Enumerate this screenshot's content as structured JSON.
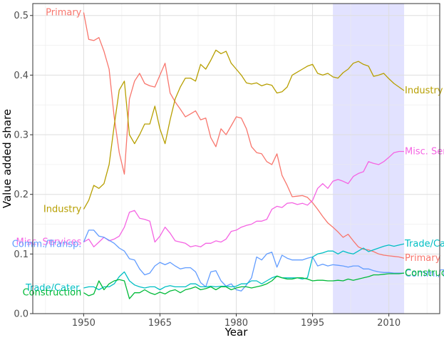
{
  "chart_data": {
    "type": "line",
    "title": "",
    "xlabel": "Year",
    "ylabel": "Value added share",
    "xlim": [
      1940,
      2020
    ],
    "ylim": [
      0,
      0.52
    ],
    "xticks": [
      1950,
      1965,
      1980,
      1995,
      2010
    ],
    "xtick_labels": [
      "1950",
      "1965",
      "1980",
      "1995",
      "2010"
    ],
    "yticks": [
      0.0,
      0.1,
      0.2,
      0.3,
      0.4,
      0.5
    ],
    "ytick_labels": [
      "0.0",
      "0.1",
      "0.2",
      "0.3",
      "0.4",
      "0.5"
    ],
    "grid": true,
    "shaded_region": {
      "x_start": 1999,
      "x_end": 2013,
      "color": "#e0e0ff"
    },
    "series": [
      {
        "name": "Primary",
        "color": "#f8766d",
        "start_label": "Primary",
        "end_label": "Primary",
        "x": [
          1950,
          1951,
          1952,
          1953,
          1954,
          1955,
          1956,
          1957,
          1958,
          1959,
          1960,
          1961,
          1962,
          1963,
          1964,
          1965,
          1966,
          1967,
          1968,
          1969,
          1970,
          1971,
          1972,
          1973,
          1974,
          1975,
          1976,
          1977,
          1978,
          1979,
          1980,
          1981,
          1982,
          1983,
          1984,
          1985,
          1986,
          1987,
          1988,
          1989,
          1990,
          1991,
          1992,
          1993,
          1994,
          1995,
          1996,
          1997,
          1998,
          1999,
          2000,
          2001,
          2002,
          2003,
          2004,
          2005,
          2006,
          2007,
          2008,
          2009,
          2010,
          2011,
          2012,
          2013
        ],
        "y": [
          0.505,
          0.46,
          0.458,
          0.463,
          0.44,
          0.41,
          0.33,
          0.27,
          0.234,
          0.36,
          0.39,
          0.403,
          0.386,
          0.382,
          0.38,
          0.4,
          0.42,
          0.37,
          0.355,
          0.343,
          0.33,
          0.335,
          0.34,
          0.325,
          0.328,
          0.295,
          0.28,
          0.31,
          0.3,
          0.315,
          0.33,
          0.328,
          0.31,
          0.28,
          0.27,
          0.268,
          0.255,
          0.25,
          0.268,
          0.232,
          0.215,
          0.196,
          0.197,
          0.198,
          0.195,
          0.186,
          0.175,
          0.163,
          0.152,
          0.145,
          0.137,
          0.128,
          0.133,
          0.122,
          0.112,
          0.108,
          0.107,
          0.104,
          0.1,
          0.098,
          0.097,
          0.096,
          0.095,
          0.093
        ]
      },
      {
        "name": "Industry",
        "color": "#b79f00",
        "start_label": "Industry",
        "end_label": "Industry",
        "x": [
          1950,
          1951,
          1952,
          1953,
          1954,
          1955,
          1956,
          1957,
          1958,
          1959,
          1960,
          1961,
          1962,
          1963,
          1964,
          1965,
          1966,
          1967,
          1968,
          1969,
          1970,
          1971,
          1972,
          1973,
          1974,
          1975,
          1976,
          1977,
          1978,
          1979,
          1980,
          1981,
          1982,
          1983,
          1984,
          1985,
          1986,
          1987,
          1988,
          1989,
          1990,
          1991,
          1992,
          1993,
          1994,
          1995,
          1996,
          1997,
          1998,
          1999,
          2000,
          2001,
          2002,
          2003,
          2004,
          2005,
          2006,
          2007,
          2008,
          2009,
          2010,
          2011,
          2012,
          2013
        ],
        "y": [
          0.175,
          0.19,
          0.215,
          0.21,
          0.218,
          0.25,
          0.315,
          0.375,
          0.39,
          0.3,
          0.285,
          0.3,
          0.318,
          0.318,
          0.348,
          0.31,
          0.285,
          0.325,
          0.36,
          0.38,
          0.395,
          0.395,
          0.39,
          0.418,
          0.41,
          0.425,
          0.442,
          0.436,
          0.44,
          0.42,
          0.41,
          0.4,
          0.387,
          0.385,
          0.387,
          0.382,
          0.385,
          0.383,
          0.37,
          0.372,
          0.38,
          0.4,
          0.405,
          0.41,
          0.415,
          0.418,
          0.403,
          0.4,
          0.403,
          0.397,
          0.395,
          0.404,
          0.41,
          0.42,
          0.423,
          0.418,
          0.415,
          0.398,
          0.4,
          0.403,
          0.394,
          0.386,
          0.38,
          0.374
        ]
      },
      {
        "name": "Misc. Services",
        "color": "#f564e3",
        "start_label": "Misc. Services",
        "end_label": "Misc. Services",
        "x": [
          1950,
          1951,
          1952,
          1953,
          1954,
          1955,
          1956,
          1957,
          1958,
          1959,
          1960,
          1961,
          1962,
          1963,
          1964,
          1965,
          1966,
          1967,
          1968,
          1969,
          1970,
          1971,
          1972,
          1973,
          1974,
          1975,
          1976,
          1977,
          1978,
          1979,
          1980,
          1981,
          1982,
          1983,
          1984,
          1985,
          1986,
          1987,
          1988,
          1989,
          1990,
          1991,
          1992,
          1993,
          1994,
          1995,
          1996,
          1997,
          1998,
          1999,
          2000,
          2001,
          2002,
          2003,
          2004,
          2005,
          2006,
          2007,
          2008,
          2009,
          2010,
          2011,
          2012,
          2013
        ],
        "y": [
          0.12,
          0.125,
          0.112,
          0.12,
          0.128,
          0.122,
          0.125,
          0.13,
          0.145,
          0.17,
          0.173,
          0.16,
          0.158,
          0.155,
          0.12,
          0.13,
          0.145,
          0.135,
          0.122,
          0.12,
          0.118,
          0.112,
          0.114,
          0.112,
          0.118,
          0.118,
          0.122,
          0.12,
          0.125,
          0.138,
          0.14,
          0.145,
          0.148,
          0.15,
          0.155,
          0.155,
          0.158,
          0.175,
          0.18,
          0.178,
          0.185,
          0.186,
          0.183,
          0.185,
          0.182,
          0.19,
          0.21,
          0.218,
          0.21,
          0.222,
          0.225,
          0.222,
          0.218,
          0.23,
          0.235,
          0.238,
          0.255,
          0.252,
          0.25,
          0.255,
          0.262,
          0.27,
          0.272,
          0.272
        ]
      },
      {
        "name": "Comm./Transp.",
        "color": "#619cff",
        "start_label": "Comm./Transp.",
        "end_label": "Comm./Transp.",
        "x": [
          1950,
          1951,
          1952,
          1953,
          1954,
          1955,
          1956,
          1957,
          1958,
          1959,
          1960,
          1961,
          1962,
          1963,
          1964,
          1965,
          1966,
          1967,
          1968,
          1969,
          1970,
          1971,
          1972,
          1973,
          1974,
          1975,
          1976,
          1977,
          1978,
          1979,
          1980,
          1981,
          1982,
          1983,
          1984,
          1985,
          1986,
          1987,
          1988,
          1989,
          1990,
          1991,
          1992,
          1993,
          1994,
          1995,
          1996,
          1997,
          1998,
          1999,
          2000,
          2001,
          2002,
          2003,
          2004,
          2005,
          2006,
          2007,
          2008,
          2009,
          2010,
          2011,
          2012,
          2013
        ],
        "y": [
          0.12,
          0.14,
          0.14,
          0.13,
          0.128,
          0.123,
          0.118,
          0.11,
          0.105,
          0.092,
          0.09,
          0.075,
          0.065,
          0.068,
          0.08,
          0.086,
          0.082,
          0.086,
          0.08,
          0.075,
          0.077,
          0.077,
          0.07,
          0.052,
          0.045,
          0.07,
          0.072,
          0.055,
          0.046,
          0.05,
          0.04,
          0.038,
          0.048,
          0.06,
          0.095,
          0.09,
          0.1,
          0.103,
          0.078,
          0.098,
          0.093,
          0.09,
          0.09,
          0.09,
          0.093,
          0.095,
          0.08,
          0.083,
          0.08,
          0.082,
          0.081,
          0.08,
          0.078,
          0.08,
          0.08,
          0.075,
          0.075,
          0.072,
          0.07,
          0.069,
          0.069,
          0.068,
          0.068,
          0.068
        ]
      },
      {
        "name": "Trade/Cater.",
        "color": "#00bfc4",
        "start_label": "Trade/Cater.",
        "end_label": "Trade/Cater.",
        "x": [
          1950,
          1951,
          1952,
          1953,
          1954,
          1955,
          1956,
          1957,
          1958,
          1959,
          1960,
          1961,
          1962,
          1963,
          1964,
          1965,
          1966,
          1967,
          1968,
          1969,
          1970,
          1971,
          1972,
          1973,
          1974,
          1975,
          1976,
          1977,
          1978,
          1979,
          1980,
          1981,
          1982,
          1983,
          1984,
          1985,
          1986,
          1987,
          1988,
          1989,
          1990,
          1991,
          1992,
          1993,
          1994,
          1995,
          1996,
          1997,
          1998,
          1999,
          2000,
          2001,
          2002,
          2003,
          2004,
          2005,
          2006,
          2007,
          2008,
          2009,
          2010,
          2011,
          2012,
          2013
        ],
        "y": [
          0.043,
          0.045,
          0.045,
          0.04,
          0.045,
          0.045,
          0.05,
          0.062,
          0.07,
          0.055,
          0.048,
          0.045,
          0.043,
          0.045,
          0.045,
          0.04,
          0.045,
          0.047,
          0.045,
          0.045,
          0.045,
          0.05,
          0.05,
          0.045,
          0.045,
          0.046,
          0.045,
          0.046,
          0.046,
          0.045,
          0.046,
          0.05,
          0.05,
          0.055,
          0.055,
          0.05,
          0.055,
          0.06,
          0.063,
          0.06,
          0.06,
          0.06,
          0.06,
          0.058,
          0.06,
          0.095,
          0.1,
          0.102,
          0.105,
          0.105,
          0.1,
          0.105,
          0.102,
          0.1,
          0.105,
          0.11,
          0.104,
          0.107,
          0.11,
          0.113,
          0.115,
          0.113,
          0.115,
          0.117
        ]
      },
      {
        "name": "Construction",
        "color": "#00ba38",
        "start_label": "Construction",
        "end_label": "Construction",
        "x": [
          1950,
          1951,
          1952,
          1953,
          1954,
          1955,
          1956,
          1957,
          1958,
          1959,
          1960,
          1961,
          1962,
          1963,
          1964,
          1965,
          1966,
          1967,
          1968,
          1969,
          1970,
          1971,
          1972,
          1973,
          1974,
          1975,
          1976,
          1977,
          1978,
          1979,
          1980,
          1981,
          1982,
          1983,
          1984,
          1985,
          1986,
          1987,
          1988,
          1989,
          1990,
          1991,
          1992,
          1993,
          1994,
          1995,
          1996,
          1997,
          1998,
          1999,
          2000,
          2001,
          2002,
          2003,
          2004,
          2005,
          2006,
          2007,
          2008,
          2009,
          2010,
          2011,
          2012,
          2013
        ],
        "y": [
          0.035,
          0.03,
          0.033,
          0.055,
          0.04,
          0.05,
          0.055,
          0.057,
          0.055,
          0.025,
          0.035,
          0.035,
          0.04,
          0.035,
          0.032,
          0.036,
          0.033,
          0.038,
          0.04,
          0.035,
          0.04,
          0.042,
          0.045,
          0.04,
          0.042,
          0.045,
          0.04,
          0.045,
          0.045,
          0.04,
          0.043,
          0.045,
          0.045,
          0.043,
          0.045,
          0.047,
          0.05,
          0.055,
          0.063,
          0.06,
          0.058,
          0.058,
          0.06,
          0.06,
          0.058,
          0.055,
          0.056,
          0.056,
          0.055,
          0.055,
          0.056,
          0.055,
          0.058,
          0.056,
          0.058,
          0.06,
          0.062,
          0.065,
          0.065,
          0.066,
          0.067,
          0.067,
          0.067,
          0.068
        ]
      }
    ]
  }
}
